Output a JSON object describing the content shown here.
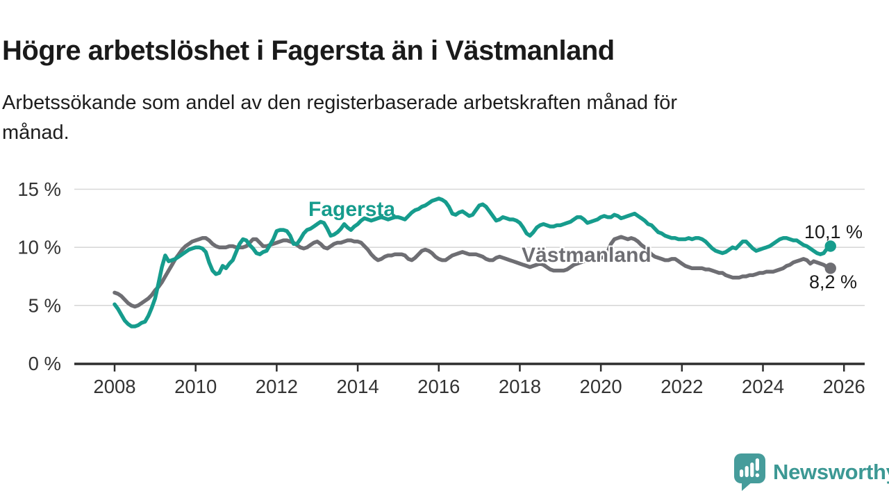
{
  "title": "Högre arbetslöshet i Fagersta än i Västmanland",
  "subtitle": "Arbetssökande som andel av den registerbaserade arbetskraften månad för\nmånad.",
  "branding": {
    "logo_text": "Newsworthy",
    "logo_icon": "newsworthy-speech-bubble-bar-chart-icon",
    "logo_color": "#469c9b"
  },
  "chart_data": {
    "type": "line",
    "title": "Högre arbetslöshet i Fagersta än i Västmanland",
    "x_unit": "month",
    "x_range": [
      "2008-01",
      "2025-09"
    ],
    "x_ticks": [
      2008,
      2010,
      2012,
      2014,
      2016,
      2018,
      2020,
      2022,
      2024,
      2026
    ],
    "ylim": [
      0,
      15
    ],
    "y_ticks": [
      {
        "value": 15,
        "label": "15 %"
      },
      {
        "value": 10,
        "label": "10 %"
      },
      {
        "value": 5,
        "label": "5 %"
      },
      {
        "value": 0,
        "label": "0 %"
      }
    ],
    "grid": "horizontal",
    "legend": "inline-labels",
    "colors": {
      "axis": "#2e2e2e",
      "gridline": "#d8d8d8",
      "tick_label": "#333333"
    },
    "series": [
      {
        "name": "Västmanland",
        "color": "#6e6e73",
        "end_label": "8,2 %",
        "end_value": 8.2,
        "values": [
          6.1,
          6.0,
          5.8,
          5.5,
          5.2,
          5.0,
          4.9,
          5.0,
          5.2,
          5.4,
          5.6,
          5.9,
          6.3,
          6.6,
          7.0,
          7.5,
          8.0,
          8.5,
          9.0,
          9.4,
          9.8,
          10.1,
          10.3,
          10.5,
          10.6,
          10.7,
          10.8,
          10.8,
          10.6,
          10.3,
          10.1,
          10.0,
          10.0,
          10.0,
          10.1,
          10.1,
          10.0,
          10.0,
          10.0,
          10.1,
          10.4,
          10.7,
          10.7,
          10.4,
          10.1,
          10.1,
          10.2,
          10.3,
          10.4,
          10.5,
          10.6,
          10.6,
          10.5,
          10.4,
          10.2,
          10.0,
          9.9,
          10.0,
          10.2,
          10.4,
          10.5,
          10.3,
          10.0,
          9.9,
          10.1,
          10.3,
          10.4,
          10.4,
          10.5,
          10.6,
          10.6,
          10.5,
          10.5,
          10.4,
          10.1,
          9.8,
          9.4,
          9.1,
          8.9,
          9.0,
          9.2,
          9.3,
          9.3,
          9.4,
          9.4,
          9.4,
          9.3,
          9.0,
          8.9,
          9.1,
          9.4,
          9.7,
          9.8,
          9.7,
          9.5,
          9.2,
          9.0,
          8.9,
          8.9,
          9.1,
          9.3,
          9.4,
          9.5,
          9.6,
          9.5,
          9.4,
          9.4,
          9.4,
          9.3,
          9.2,
          9.0,
          8.9,
          8.9,
          9.1,
          9.2,
          9.1,
          9.0,
          8.9,
          8.8,
          8.7,
          8.6,
          8.5,
          8.4,
          8.3,
          8.4,
          8.5,
          8.6,
          8.5,
          8.3,
          8.1,
          8.0,
          8.0,
          8.0,
          8.0,
          8.1,
          8.3,
          8.5,
          8.6,
          8.7,
          8.8,
          8.8,
          8.9,
          8.9,
          9.0,
          9.1,
          9.2,
          9.6,
          10.3,
          10.7,
          10.8,
          10.9,
          10.8,
          10.7,
          10.8,
          10.7,
          10.5,
          10.2,
          10.0,
          9.7,
          9.4,
          9.2,
          9.1,
          9.0,
          8.9,
          8.9,
          9.0,
          9.0,
          8.8,
          8.6,
          8.4,
          8.3,
          8.2,
          8.2,
          8.2,
          8.2,
          8.1,
          8.1,
          8.0,
          7.9,
          7.8,
          7.8,
          7.6,
          7.5,
          7.4,
          7.4,
          7.4,
          7.5,
          7.5,
          7.6,
          7.6,
          7.7,
          7.8,
          7.8,
          7.9,
          7.9,
          7.9,
          8.0,
          8.1,
          8.2,
          8.4,
          8.5,
          8.7,
          8.8,
          8.9,
          9.0,
          8.9,
          8.6,
          8.8,
          8.7,
          8.6,
          8.5,
          8.3,
          8.2
        ]
      },
      {
        "name": "Fagersta",
        "color": "#169c8d",
        "end_label": "10,1 %",
        "end_value": 10.1,
        "values": [
          5.1,
          4.7,
          4.2,
          3.7,
          3.4,
          3.2,
          3.2,
          3.3,
          3.5,
          3.6,
          4.1,
          4.8,
          5.6,
          6.9,
          8.3,
          9.3,
          8.8,
          8.9,
          9.0,
          9.2,
          9.4,
          9.6,
          9.8,
          9.9,
          10.0,
          10.0,
          9.9,
          9.6,
          8.7,
          8.0,
          7.7,
          7.8,
          8.4,
          8.2,
          8.6,
          8.9,
          9.6,
          10.3,
          10.7,
          10.6,
          10.2,
          9.9,
          9.5,
          9.4,
          9.6,
          9.7,
          10.2,
          10.7,
          11.4,
          11.5,
          11.5,
          11.4,
          11.0,
          10.3,
          10.3,
          10.7,
          11.2,
          11.5,
          11.6,
          11.8,
          12.0,
          12.2,
          12.1,
          11.6,
          11.0,
          11.1,
          11.3,
          11.6,
          12.0,
          11.7,
          11.5,
          11.8,
          12.0,
          12.3,
          12.5,
          12.4,
          12.3,
          12.4,
          12.5,
          12.6,
          12.5,
          12.4,
          12.5,
          12.6,
          12.6,
          12.5,
          12.4,
          12.7,
          13.0,
          13.2,
          13.3,
          13.5,
          13.6,
          13.8,
          14.0,
          14.1,
          14.2,
          14.1,
          13.9,
          13.5,
          12.9,
          12.8,
          13.0,
          13.1,
          12.9,
          12.7,
          12.8,
          13.2,
          13.6,
          13.7,
          13.5,
          13.1,
          12.7,
          12.3,
          12.4,
          12.6,
          12.5,
          12.4,
          12.4,
          12.3,
          12.1,
          11.7,
          11.2,
          11.0,
          11.3,
          11.7,
          11.9,
          12.0,
          11.9,
          11.8,
          11.8,
          11.9,
          11.9,
          12.0,
          12.1,
          12.2,
          12.4,
          12.6,
          12.6,
          12.4,
          12.1,
          12.2,
          12.3,
          12.4,
          12.6,
          12.7,
          12.6,
          12.6,
          12.8,
          12.7,
          12.5,
          12.6,
          12.7,
          12.8,
          12.9,
          12.7,
          12.5,
          12.3,
          12.0,
          11.9,
          11.6,
          11.3,
          11.2,
          11.0,
          10.9,
          10.8,
          10.8,
          10.7,
          10.7,
          10.7,
          10.8,
          10.7,
          10.8,
          10.8,
          10.7,
          10.5,
          10.2,
          9.9,
          9.7,
          9.6,
          9.5,
          9.6,
          9.8,
          10.0,
          9.9,
          10.2,
          10.5,
          10.5,
          10.2,
          9.9,
          9.7,
          9.8,
          9.9,
          10.0,
          10.1,
          10.3,
          10.5,
          10.7,
          10.8,
          10.8,
          10.7,
          10.6,
          10.6,
          10.4,
          10.2,
          10.1,
          9.9,
          9.7,
          9.5,
          9.4,
          9.5,
          9.9,
          10.1
        ]
      }
    ]
  }
}
